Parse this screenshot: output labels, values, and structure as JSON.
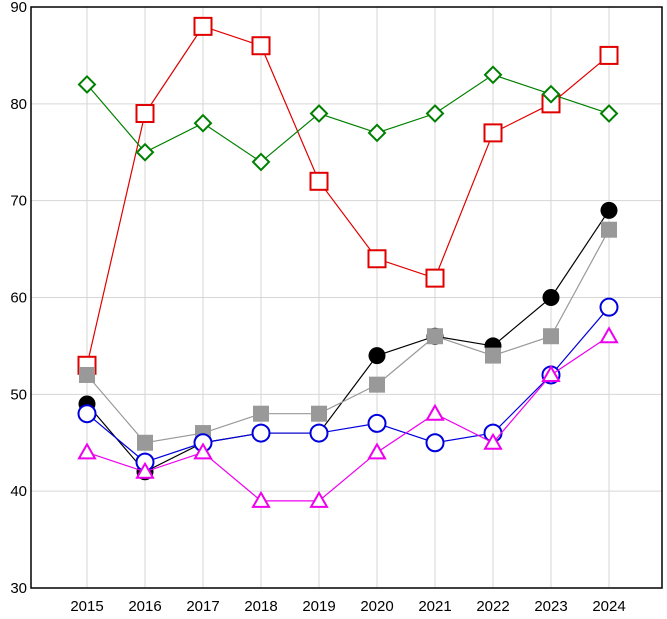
{
  "chart_data": {
    "type": "line",
    "title": "",
    "xlabel": "",
    "ylabel": "",
    "categories": [
      "2015",
      "2016",
      "2017",
      "2018",
      "2019",
      "2020",
      "2021",
      "2022",
      "2023",
      "2024"
    ],
    "ylim": [
      30,
      90
    ],
    "y_ticks": [
      30,
      40,
      50,
      60,
      70,
      80,
      90
    ],
    "grid": true,
    "legend": "none",
    "series": [
      {
        "values": [
          53,
          79,
          88,
          86,
          72,
          64,
          62,
          77,
          80,
          85
        ],
        "color": "#e00000",
        "marker": "open-square"
      },
      {
        "values": [
          82,
          75,
          78,
          74,
          79,
          77,
          79,
          83,
          81,
          79
        ],
        "color": "#008000",
        "marker": "open-diamond"
      },
      {
        "values": [
          49,
          42,
          45,
          46,
          46,
          54,
          56,
          55,
          60,
          69
        ],
        "color": "#000000",
        "marker": "filled-circle"
      },
      {
        "values": [
          52,
          45,
          46,
          48,
          48,
          51,
          56,
          54,
          56,
          67
        ],
        "color": "#999999",
        "marker": "filled-square"
      },
      {
        "values": [
          48,
          43,
          45,
          46,
          46,
          47,
          45,
          46,
          52,
          59
        ],
        "color": "#0000dd",
        "marker": "open-circle"
      },
      {
        "values": [
          44,
          42,
          44,
          39,
          39,
          44,
          48,
          45,
          52,
          56
        ],
        "color": "#ee00ee",
        "marker": "open-triangle"
      }
    ]
  }
}
